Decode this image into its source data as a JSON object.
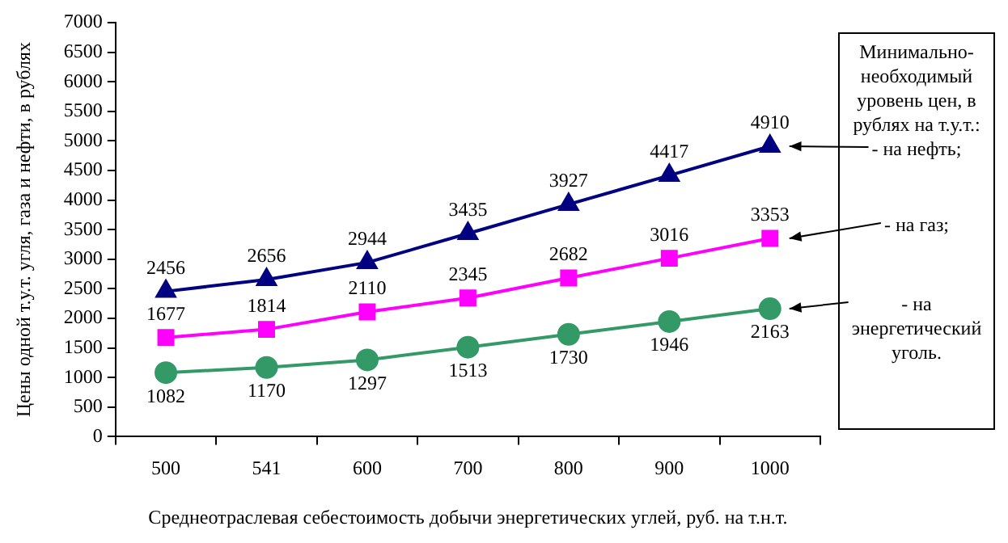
{
  "chart_data": {
    "type": "line",
    "xlabel": "Среднеотраслевая себестоимость добычи энергетических углей, руб. на т.н.т.",
    "ylabel": "Цены одной т.у.т. угля, газа и нефти, в рублях",
    "legend_title": "Минимально-необходимый уровень цен, в рублях на т.у.т.:",
    "legend": "right",
    "categories": [
      "500",
      "541",
      "600",
      "700",
      "800",
      "900",
      "1000"
    ],
    "series": [
      {
        "name": "- на нефть;",
        "color": "#000080",
        "marker": "triangle",
        "values": [
          2456,
          2656,
          2944,
          3435,
          3927,
          4417,
          4910
        ]
      },
      {
        "name": "- на газ;",
        "color": "#ff00ff",
        "marker": "square",
        "values": [
          1677,
          1814,
          2110,
          2345,
          2682,
          3016,
          3353
        ]
      },
      {
        "name": "- на энергетический уголь.",
        "color": "#339966",
        "marker": "circle",
        "values": [
          1082,
          1170,
          1297,
          1513,
          1730,
          1946,
          2163
        ]
      }
    ],
    "ylim": [
      0,
      7000
    ],
    "yticks": [
      0,
      500,
      1000,
      1500,
      2000,
      2500,
      3000,
      3500,
      4000,
      4500,
      5000,
      5500,
      6000,
      6500,
      7000
    ],
    "grid": false,
    "data_labels": true
  }
}
